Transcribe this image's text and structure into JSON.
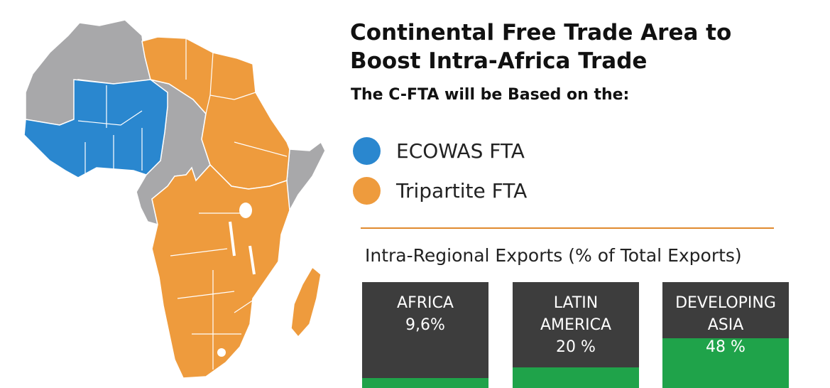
{
  "title_line1": "Continental Free Trade Area to",
  "title_line2": "Boost Intra-Africa Trade",
  "subtitle": "The C-FTA will be Based on the:",
  "legend": [
    {
      "label": "ECOWAS FTA",
      "color": "#2a87cf"
    },
    {
      "label": "Tripartite FTA",
      "color": "#ee9b3d"
    }
  ],
  "map_colors": {
    "other": "#a8a8aa",
    "borders": "#ffffff"
  },
  "exports_title": "Intra-Regional Exports (% of Total Exports)",
  "stats": [
    {
      "line1": "AFRICA",
      "line2": "",
      "value": "9,6%",
      "percent": 9.6
    },
    {
      "line1": "LATIN",
      "line2": "AMERICA",
      "value": "20 %",
      "percent": 20
    },
    {
      "line1": "DEVELOPING",
      "line2": "ASIA",
      "value": "48 %",
      "percent": 48
    }
  ],
  "box_color": "#3d3d3d",
  "fill_color": "#1fa34a"
}
